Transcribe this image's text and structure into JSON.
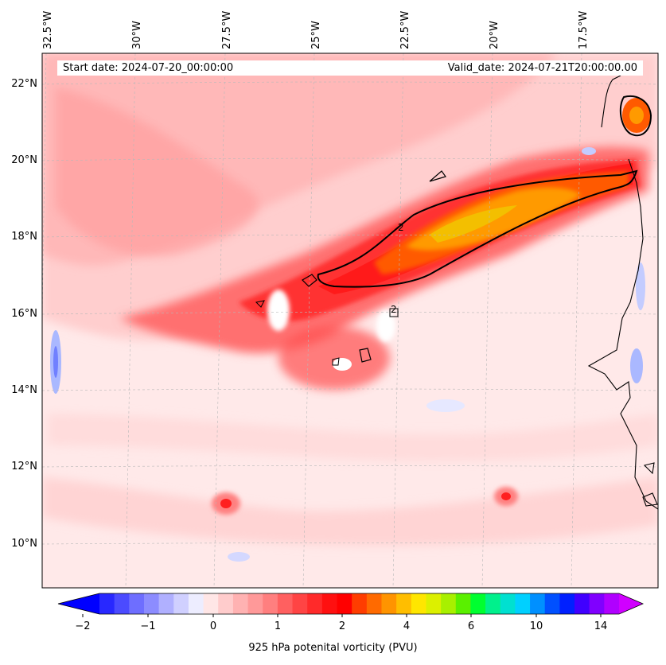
{
  "map": {
    "start_date": "Start date: 2024-07-20_00:00:00",
    "valid_date": "Valid_date: 2024-07-21T20:00:00.00",
    "longitude_labels": [
      "32.5°W",
      "30°W",
      "27.5°W",
      "25°W",
      "22.5°W",
      "20°W",
      "17.5°W"
    ],
    "latitude_labels": [
      "22°N",
      "20°N",
      "18°N",
      "16°N",
      "14°N",
      "12°N",
      "10°N"
    ],
    "contour_labels": [
      "2",
      "2"
    ],
    "colors": {
      "background": "#ffe9e9",
      "light_pink": "#ffcece",
      "pink": "#ffb0b0",
      "salmon": "#ff8c8c",
      "red_light": "#ff5a5a",
      "red": "#ff1f1f",
      "orange_red": "#ff4a00",
      "orange": "#ff9a00",
      "yellow": "#f0c800",
      "blue_low": "#aab8ff",
      "blue_mid": "#7080ff"
    }
  },
  "colorbar": {
    "title": "925 hPa potenital vorticity (PVU)",
    "ticks": [
      "−2",
      "−1",
      "0",
      "1",
      "2",
      "4",
      "6",
      "10",
      "14"
    ],
    "colors": [
      "#0000ff",
      "#2828ff",
      "#4b4bff",
      "#6e6eff",
      "#8c8cff",
      "#b0b0ff",
      "#d0d0ff",
      "#ededff",
      "#ffe6e6",
      "#ffcccc",
      "#ffb2b2",
      "#ff9999",
      "#ff7f7f",
      "#ff6060",
      "#ff4444",
      "#ff2a2a",
      "#ff1010",
      "#ff0000",
      "#ff3d00",
      "#ff6a00",
      "#ff9400",
      "#ffbe00",
      "#ffe600",
      "#dcf000",
      "#a8f000",
      "#5af000",
      "#00ff30",
      "#00f08c",
      "#00e0d0",
      "#00d0ff",
      "#0090ff",
      "#0050ff",
      "#0020ff",
      "#4000ff",
      "#8000ff",
      "#b000ff",
      "#d000ff"
    ]
  }
}
